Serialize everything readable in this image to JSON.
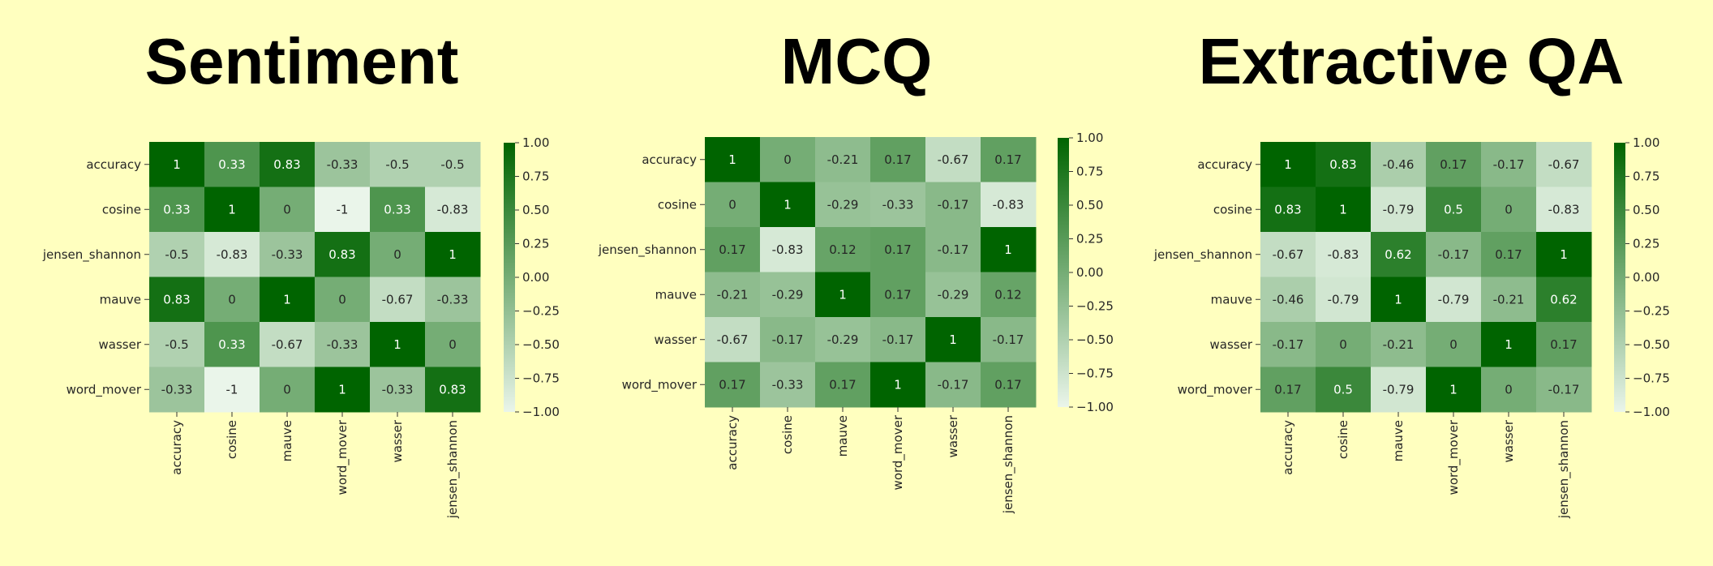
{
  "chart_data": [
    {
      "type": "heatmap",
      "title": "Sentiment",
      "row_labels": [
        "accuracy",
        "cosine",
        "jensen_shannon",
        "mauve",
        "wasser",
        "word_mover"
      ],
      "col_labels": [
        "accuracy",
        "cosine",
        "mauve",
        "word_mover",
        "wasser",
        "jensen_shannon"
      ],
      "values": [
        [
          1,
          0.33,
          0.83,
          -0.33,
          -0.5,
          -0.5
        ],
        [
          0.33,
          1,
          0,
          -1,
          0.33,
          -0.83
        ],
        [
          -0.5,
          -0.83,
          -0.33,
          0.83,
          0,
          1
        ],
        [
          0.83,
          0,
          1,
          0,
          -0.67,
          -0.33
        ],
        [
          -0.5,
          0.33,
          -0.67,
          -0.33,
          1,
          0
        ],
        [
          -0.33,
          -1,
          0,
          1,
          -0.33,
          0.83
        ]
      ],
      "colorbar": {
        "min": -1,
        "max": 1,
        "ticks": [
          "1.00",
          "0.75",
          "0.50",
          "0.25",
          "0.00",
          "−0.25",
          "−0.50",
          "−0.75",
          "−1.00"
        ]
      },
      "colormap": [
        "#eaf5ea",
        "#006400"
      ]
    },
    {
      "type": "heatmap",
      "title": "MCQ",
      "row_labels": [
        "accuracy",
        "cosine",
        "jensen_shannon",
        "mauve",
        "wasser",
        "word_mover"
      ],
      "col_labels": [
        "accuracy",
        "cosine",
        "mauve",
        "word_mover",
        "wasser",
        "jensen_shannon"
      ],
      "values": [
        [
          1,
          0,
          -0.21,
          0.17,
          -0.67,
          0.17
        ],
        [
          0,
          1,
          -0.29,
          -0.33,
          -0.17,
          -0.83
        ],
        [
          0.17,
          -0.83,
          0.12,
          0.17,
          -0.17,
          1
        ],
        [
          -0.21,
          -0.29,
          1,
          0.17,
          -0.29,
          0.12
        ],
        [
          -0.67,
          -0.17,
          -0.29,
          -0.17,
          1,
          -0.17
        ],
        [
          0.17,
          -0.33,
          0.17,
          1,
          -0.17,
          0.17
        ]
      ],
      "colorbar": {
        "min": -1,
        "max": 1,
        "ticks": [
          "1.00",
          "0.75",
          "0.50",
          "0.25",
          "0.00",
          "−0.25",
          "−0.50",
          "−0.75",
          "−1.00"
        ]
      },
      "colormap": [
        "#eaf5ea",
        "#006400"
      ]
    },
    {
      "type": "heatmap",
      "title": "Extractive QA",
      "row_labels": [
        "accuracy",
        "cosine",
        "jensen_shannon",
        "mauve",
        "wasser",
        "word_mover"
      ],
      "col_labels": [
        "accuracy",
        "cosine",
        "mauve",
        "word_mover",
        "wasser",
        "jensen_shannon"
      ],
      "values": [
        [
          1,
          0.83,
          -0.46,
          0.17,
          -0.17,
          -0.67
        ],
        [
          0.83,
          1,
          -0.79,
          0.5,
          0,
          -0.83
        ],
        [
          -0.67,
          -0.83,
          0.62,
          -0.17,
          0.17,
          1
        ],
        [
          -0.46,
          -0.79,
          1,
          -0.79,
          -0.21,
          0.62
        ],
        [
          -0.17,
          0,
          -0.21,
          0,
          1,
          0.17
        ],
        [
          0.17,
          0.5,
          -0.79,
          1,
          0,
          -0.17
        ]
      ],
      "colorbar": {
        "min": -1,
        "max": 1,
        "ticks": [
          "1.00",
          "0.75",
          "0.50",
          "0.25",
          "0.00",
          "−0.25",
          "−0.50",
          "−0.75",
          "−1.00"
        ]
      },
      "colormap": [
        "#eaf5ea",
        "#006400"
      ]
    }
  ]
}
